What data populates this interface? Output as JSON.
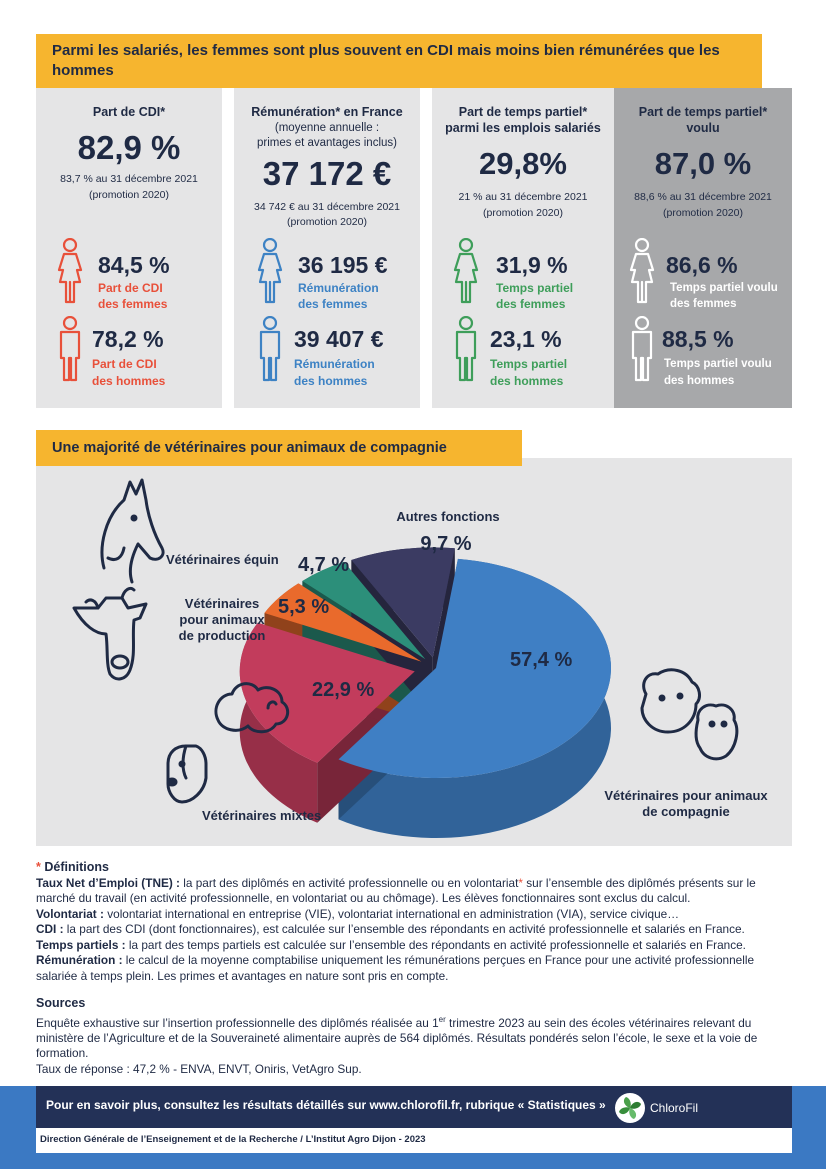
{
  "section1": {
    "title": "Parmi les salariés, les femmes sont plus souvent en CDI mais moins bien rémunérées que les hommes",
    "columns": [
      {
        "heading": "Part de CDI*",
        "heading_sub": "",
        "value": "82,9 %",
        "note1": "83,7 % au 31 décembre 2021",
        "note2": "(promotion 2020)",
        "women_value": "84,5 %",
        "women_label1": "Part de CDI",
        "women_label2": "des femmes",
        "men_value": "78,2 %",
        "men_label1": "Part de CDI",
        "men_label2": "des hommes",
        "color": "#e8503a"
      },
      {
        "heading": "Rémunération* en France",
        "heading_sub1": "(moyenne annuelle :",
        "heading_sub2": "primes et avantages inclus)",
        "value": "37 172 €",
        "note1": "34 742 € au 31 décembre 2021",
        "note2": "(promotion 2020)",
        "women_value": "36 195 €",
        "women_label1": "Rémunération",
        "women_label2": "des femmes",
        "men_value": "39 407 €",
        "men_label1": "Rémunération",
        "men_label2": "des hommes",
        "color": "#3d82c4"
      },
      {
        "heading1": "Part de temps partiel*",
        "heading2": "parmi les emplois salariés",
        "value": "29,8%",
        "note1": "21 % au 31 décembre 2021",
        "note2": "(promotion 2020)",
        "women_value": "31,9 %",
        "women_label1": "Temps partiel",
        "women_label2": "des femmes",
        "men_value": "23,1 %",
        "men_label1": "Temps partiel",
        "men_label2": "des hommes",
        "color": "#3e9e5a"
      },
      {
        "heading1": "Part de temps partiel*",
        "heading2": "voulu",
        "value": "87,0 %",
        "note1": "88,6 % au 31 décembre 2021",
        "note2": "(promotion 2020)",
        "women_value": "86,6 %",
        "women_label1": "Temps partiel voulu",
        "women_label2": "des femmes",
        "men_value": "88,5 %",
        "men_label1": "Temps partiel voulu",
        "men_label2": "des hommes",
        "color": "#ffffff"
      }
    ]
  },
  "section2": {
    "title": "Une majorité de vétérinaires pour animaux de compagnie",
    "labels": {
      "autres": "Autres fonctions",
      "equin": "Vétérinaires équin",
      "production1": "Vétérinaires",
      "production2": "pour animaux",
      "production3": "de production",
      "mixtes": "Vétérinaires mixtes",
      "compagnie1": "Vétérinaires pour animaux",
      "compagnie2": "de compagnie"
    }
  },
  "chart_data": {
    "type": "pie",
    "categories": [
      "Vétérinaires pour animaux de compagnie",
      "Vétérinaires mixtes",
      "Vétérinaires pour animaux de production",
      "Vétérinaires équin",
      "Autres fonctions"
    ],
    "values": [
      57.4,
      22.9,
      5.3,
      4.7,
      9.7
    ],
    "value_labels": [
      "57,4 %",
      "22,9 %",
      "5,3 %",
      "4,7 %",
      "9,7 %"
    ],
    "colors": [
      "#3f7fc4",
      "#c23c5c",
      "#e96a2c",
      "#2c8f7a",
      "#3b3b62"
    ],
    "title": "Une majorité de vétérinaires pour animaux de compagnie"
  },
  "definitions": {
    "title_star": "*",
    "title": " Définitions",
    "tne_term": "Taux Net d’Emploi (TNE) :",
    "tne_text": " la part des diplômés en activité professionnelle ou en volontariat",
    "tne_star": "*",
    "tne_text2": " sur l’ensemble des diplômés présents sur le marché du travail (en activité professionnelle, en volontariat ou au chômage). Les élèves fonctionnaires sont exclus du calcul.",
    "vol_term": "Volontariat :",
    "vol_text": " volontariat international en entreprise (VIE), volontariat international en administration (VIA), service civique…",
    "cdi_term": "CDI :",
    "cdi_text": " la part des CDI (dont fonctionnaires), est calculée sur l’ensemble des répondants en activité professionnelle et salariés en France.",
    "tp_term": "Temps partiels :",
    "tp_text": " la part des temps partiels est calculée sur l’ensemble des répondants en activité professionnelle et salariés en France.",
    "rem_term": "Rémunération :",
    "rem_text": " le calcul de la moyenne comptabilise uniquement les rémunérations perçues en France pour une activité professionnelle salariée à temps plein. Les primes et avantages en nature sont pris en compte."
  },
  "sources": {
    "title": "Sources",
    "text1": "Enquête exhaustive sur l’insertion professionnelle des diplômés réalisée au 1",
    "sup": "er",
    "text2": " trimestre 2023 au sein des écoles vétérinaires relevant du ministère de l’Agriculture et de la Souveraineté alimentaire auprès de 564 diplômés. Résultats pondérés selon l’école, le sexe et la voie de formation.",
    "text3": "Taux de réponse : 47,2 % - ENVA, ENVT, Oniris, VetAgro Sup."
  },
  "footer": {
    "text": "Pour en savoir plus, consultez les résultats détaillés sur www.chlorofil.fr, rubrique « Statistiques »",
    "logo_text": "ChloroFil",
    "credit": "Direction Générale de l’Enseignement et de la Recherche / L’Institut Agro Dijon - 2023"
  }
}
